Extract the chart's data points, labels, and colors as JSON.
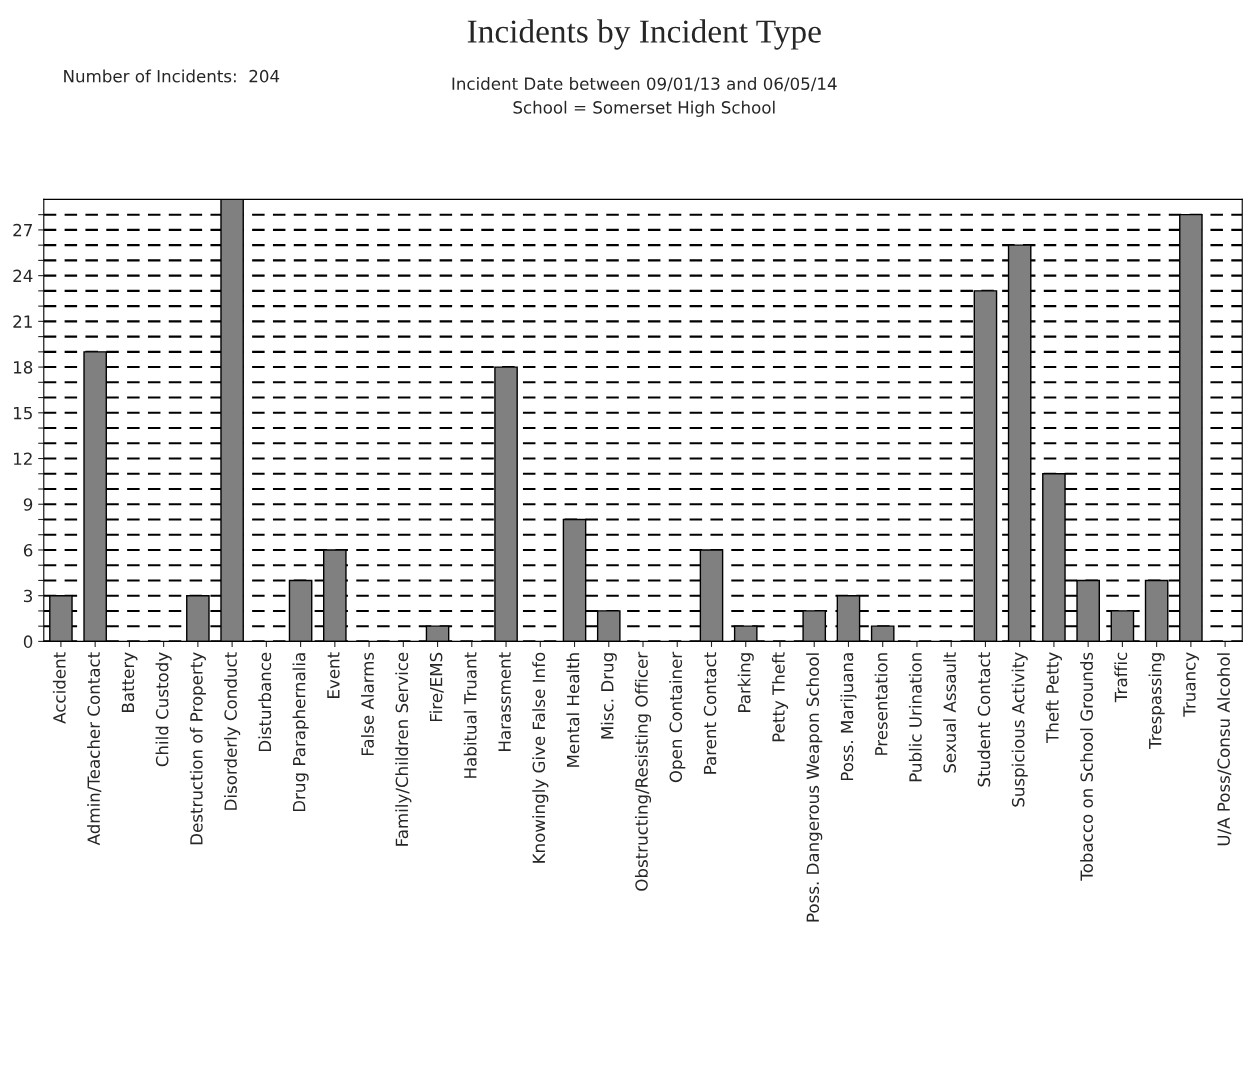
{
  "chart_data": {
    "type": "bar",
    "title": "Incidents by Incident Type",
    "subtitle": "Incident Date between 09/01/13 and 06/05/14\nSchool = Somerset High School",
    "annotations": [
      "Number of Incidents:  204"
    ],
    "categories": [
      "Accident",
      "Admin/Teacher Contact",
      "Battery",
      "Child Custody",
      "Destruction of Property",
      "Disorderly Conduct",
      "Disturbance",
      "Drug Paraphernalia",
      "Event",
      "False Alarms",
      "Family/Children Service",
      "Fire/EMS",
      "Habitual Truant",
      "Harassment",
      "Knowingly Give False Info",
      "Mental Health",
      "Misc. Drug",
      "Obstructing/Resisting Officer",
      "Open Container",
      "Parent Contact",
      "Parking",
      "Petty Theft",
      "Poss. Dangerous Weapon School",
      "Poss. Marijuana",
      "Presentation",
      "Public Urination",
      "Sexual Assault",
      "Student Contact",
      "Suspicious Activity",
      "Theft Petty",
      "Tobacco on School Grounds",
      "Traffic",
      "Trespassing",
      "Truancy",
      "U/A Poss/Consu Alcohol"
    ],
    "values": [
      3,
      19,
      0,
      0,
      3,
      29,
      0,
      4,
      6,
      0,
      0,
      1,
      0,
      18,
      0,
      8,
      2,
      0,
      0,
      6,
      1,
      0,
      2,
      3,
      1,
      0,
      0,
      23,
      26,
      11,
      4,
      2,
      4,
      28,
      0
    ],
    "color": "#808080",
    "ylim": [
      0,
      29
    ],
    "yticks": [
      0,
      {
        "value": 1,
        "label": null
      },
      {
        "value": 2,
        "label": null
      },
      3,
      {
        "value": 4,
        "label": null
      },
      {
        "value": 5,
        "label": null
      },
      6,
      {
        "value": 7,
        "label": null
      },
      {
        "value": 8,
        "label": null
      },
      9,
      {
        "value": 10,
        "label": null
      },
      {
        "value": 11,
        "label": null
      },
      12,
      {
        "value": 13,
        "label": null
      },
      {
        "value": 14,
        "label": null
      },
      15,
      {
        "value": 16,
        "label": null
      },
      {
        "value": 17,
        "label": null
      },
      18,
      {
        "value": 19,
        "label": null
      },
      {
        "value": 20,
        "label": null
      },
      21,
      {
        "value": 22,
        "label": null
      },
      {
        "value": 23,
        "label": null
      },
      24,
      {
        "value": 25,
        "label": null
      },
      {
        "value": 26,
        "label": null
      },
      27,
      {
        "value": 28,
        "label": null
      }
    ],
    "grid": "y",
    "legend": false
  }
}
